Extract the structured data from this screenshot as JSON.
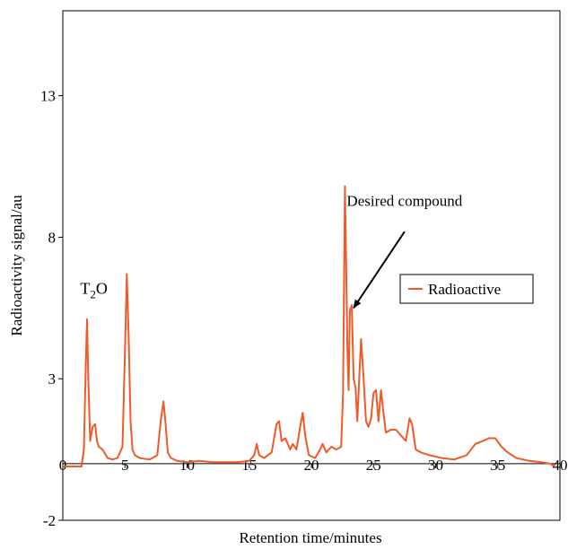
{
  "chart_data": {
    "type": "line",
    "title": "",
    "xlabel": "Retention time/minutes",
    "ylabel": "Radioactivity signal/au",
    "xlim": [
      0,
      40
    ],
    "ylim": [
      -2,
      16
    ],
    "x_ticks": [
      0,
      5,
      10,
      15,
      20,
      25,
      30,
      35,
      40
    ],
    "x_tick_labels": [
      "0",
      "5",
      "10",
      "15",
      "20",
      "25",
      "30",
      "35",
      "40"
    ],
    "y_ticks": [
      -2,
      3,
      8,
      13
    ],
    "y_tick_labels": [
      "-2",
      "3",
      "8",
      "13"
    ],
    "grid": false,
    "legend_position": "right",
    "series": [
      {
        "name": "Radioactive",
        "color": "#f05a28",
        "x": [
          0.0,
          1.5,
          1.7,
          1.85,
          1.95,
          2.05,
          2.2,
          2.4,
          2.6,
          2.75,
          2.9,
          3.2,
          3.6,
          4.0,
          4.4,
          4.8,
          5.0,
          5.15,
          5.3,
          5.45,
          5.6,
          5.8,
          6.2,
          7.0,
          7.6,
          7.9,
          8.1,
          8.25,
          8.45,
          8.7,
          9.2,
          10.0,
          11.0,
          12.0,
          13.0,
          14.0,
          15.0,
          15.4,
          15.6,
          15.8,
          16.2,
          16.8,
          17.2,
          17.4,
          17.6,
          17.9,
          18.1,
          18.3,
          18.5,
          18.8,
          19.1,
          19.3,
          19.5,
          19.8,
          20.3,
          20.7,
          20.9,
          21.2,
          21.6,
          22.0,
          22.4,
          22.55,
          22.7,
          22.8,
          22.9,
          23.0,
          23.1,
          23.25,
          23.4,
          23.55,
          23.7,
          23.85,
          24.0,
          24.2,
          24.4,
          24.6,
          24.8,
          25.0,
          25.2,
          25.4,
          25.6,
          25.8,
          26.0,
          26.4,
          26.8,
          27.2,
          27.6,
          27.9,
          28.1,
          28.4,
          28.8,
          29.5,
          30.5,
          31.5,
          32.5,
          33.2,
          33.8,
          34.3,
          34.8,
          35.3,
          35.8,
          36.5,
          37.5,
          38.5,
          39.2,
          39.6
        ],
        "values": [
          -0.1,
          -0.1,
          0.5,
          3.5,
          5.1,
          3.0,
          0.8,
          1.3,
          1.4,
          0.8,
          0.6,
          0.5,
          0.2,
          0.15,
          0.2,
          0.6,
          4.0,
          6.7,
          4.5,
          1.5,
          0.5,
          0.3,
          0.2,
          0.15,
          0.3,
          1.6,
          2.2,
          1.5,
          0.4,
          0.2,
          0.1,
          0.05,
          0.1,
          0.05,
          0.05,
          0.05,
          0.1,
          0.3,
          0.7,
          0.3,
          0.2,
          0.4,
          1.4,
          1.5,
          0.8,
          0.9,
          0.7,
          0.5,
          0.7,
          0.5,
          1.3,
          1.8,
          1.0,
          0.3,
          0.2,
          0.5,
          0.7,
          0.4,
          0.6,
          0.5,
          0.6,
          2.5,
          9.8,
          7.0,
          4.0,
          2.6,
          5.4,
          5.6,
          3.0,
          2.7,
          1.5,
          3.0,
          4.4,
          3.0,
          1.5,
          1.3,
          1.6,
          2.5,
          2.6,
          1.5,
          2.6,
          1.8,
          1.1,
          1.2,
          1.2,
          1.0,
          0.8,
          1.6,
          1.4,
          0.5,
          0.4,
          0.3,
          0.2,
          0.15,
          0.3,
          0.7,
          0.8,
          0.9,
          0.9,
          0.6,
          0.4,
          0.2,
          0.1,
          0.05,
          0.0,
          -0.1
        ]
      }
    ],
    "annotations": [
      {
        "id": "t2o",
        "text_main": "T",
        "text_sub": "2",
        "text_tail": "O",
        "x": 2.5,
        "y": 6.0
      },
      {
        "id": "desired",
        "text": "Desired compound",
        "x": 27.5,
        "y": 9.1,
        "arrow_from": [
          27.5,
          8.2
        ],
        "arrow_to": [
          23.4,
          5.5
        ]
      }
    ]
  }
}
